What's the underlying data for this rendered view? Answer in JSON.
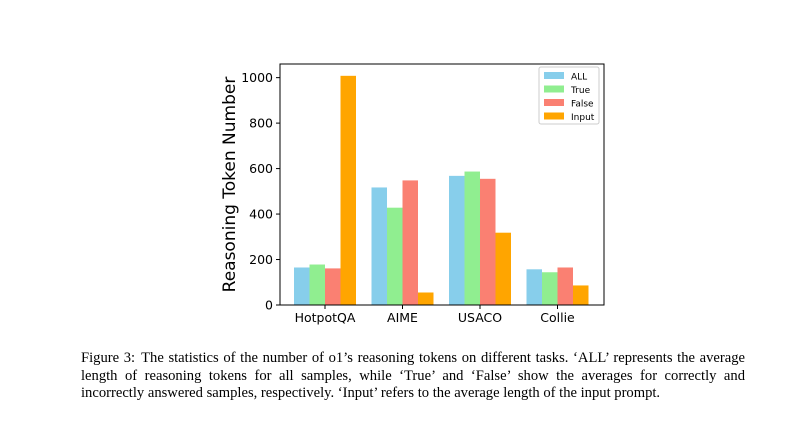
{
  "chart_data": {
    "type": "bar",
    "title": "",
    "xlabel": "",
    "ylabel": "Reasoning Token Number",
    "ylim": [
      0,
      1060
    ],
    "yticks": [
      0,
      200,
      400,
      600,
      800,
      1000
    ],
    "categories": [
      "HotpotQA",
      "AIME",
      "USACO",
      "Collie"
    ],
    "legend_position": "top-right",
    "series": [
      {
        "name": "ALL",
        "color": "#87CEEB",
        "values": [
          165,
          517,
          568,
          157
        ]
      },
      {
        "name": "True",
        "color": "#90EE90",
        "values": [
          178,
          428,
          587,
          144
        ]
      },
      {
        "name": "False",
        "color": "#FA8072",
        "values": [
          161,
          548,
          555,
          165
        ]
      },
      {
        "name": "Input",
        "color": "#FFA500",
        "values": [
          1008,
          55,
          318,
          86
        ]
      }
    ]
  },
  "caption": {
    "label": "Figure 3:",
    "text": "The statistics of the number of o1’s reasoning tokens on different tasks. ‘ALL’ represents the average length of reasoning tokens for all samples, while ‘True’ and ‘False’ show the averages for correctly and incorrectly answered samples, respectively. ‘Input’ refers to the average length of the input prompt."
  }
}
